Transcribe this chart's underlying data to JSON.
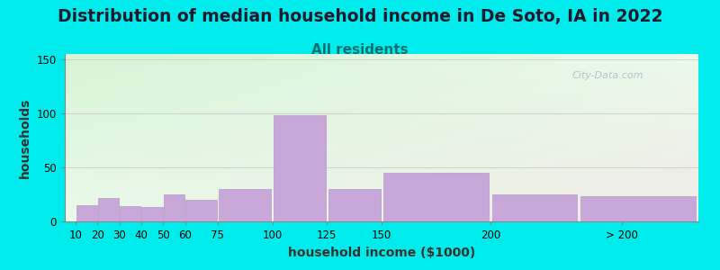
{
  "title": "Distribution of median household income in De Soto, IA in 2022",
  "subtitle": "All residents",
  "xlabel": "household income ($1000)",
  "ylabel": "households",
  "bar_color": "#c8a8d8",
  "bar_edgecolor": "#b898c8",
  "background_outer": "#00ecec",
  "categories": [
    "10",
    "20",
    "30",
    "40",
    "50",
    "60",
    "75",
    "100",
    "125",
    "150",
    "200",
    "> 200"
  ],
  "values": [
    15,
    22,
    14,
    13,
    25,
    20,
    30,
    98,
    30,
    45,
    25,
    23
  ],
  "ylim": [
    0,
    155
  ],
  "yticks": [
    0,
    50,
    100,
    150
  ],
  "watermark": "City-Data.com",
  "title_fontsize": 13.5,
  "subtitle_fontsize": 11,
  "axis_label_fontsize": 10,
  "tick_fontsize": 8.5,
  "bar_positions": [
    10,
    20,
    30,
    40,
    50,
    60,
    75,
    100,
    125,
    150,
    200,
    240
  ],
  "bar_widths": [
    10,
    10,
    10,
    10,
    10,
    15,
    25,
    25,
    25,
    50,
    40,
    55
  ],
  "xlim": [
    5,
    295
  ],
  "xtick_positions": [
    10,
    20,
    30,
    40,
    50,
    60,
    75,
    100,
    125,
    150,
    200,
    260
  ]
}
